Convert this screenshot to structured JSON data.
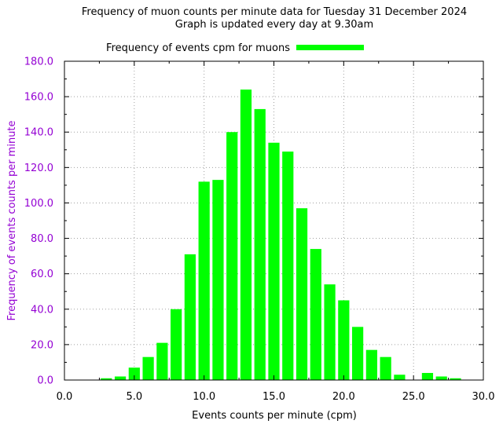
{
  "chart_data": {
    "type": "bar",
    "title": "Frequency of muon counts per minute data for Tuesday 31 December 2024",
    "subtitle": "Graph is updated every day at 9.30am",
    "xlabel": "Events counts per minute (cpm)",
    "ylabel": "Frequency of events counts per minute",
    "xlim": [
      0,
      30
    ],
    "ylim": [
      0,
      180
    ],
    "x_ticks": [
      "0.0",
      "5.0",
      "10.0",
      "15.0",
      "20.0",
      "25.0",
      "30.0"
    ],
    "y_ticks": [
      "0.0",
      "20.0",
      "40.0",
      "60.0",
      "80.0",
      "100.0",
      "120.0",
      "140.0",
      "160.0",
      "180.0"
    ],
    "grid": true,
    "legend_position": "top",
    "series": [
      {
        "name": "Frequency of events cpm for muons",
        "color": "#00ff00",
        "x": [
          3,
          4,
          5,
          6,
          7,
          8,
          9,
          10,
          11,
          12,
          13,
          14,
          15,
          16,
          17,
          18,
          19,
          20,
          21,
          22,
          23,
          24,
          26,
          27,
          28
        ],
        "values": [
          1,
          2,
          7,
          13,
          21,
          40,
          71,
          112,
          113,
          140,
          164,
          153,
          134,
          129,
          97,
          74,
          54,
          45,
          30,
          17,
          13,
          3,
          4,
          2,
          1
        ]
      }
    ],
    "colors": {
      "bars": "#00ff00",
      "ylabel": "#9400d3",
      "yticks": "#9400d3",
      "axes": "#000000",
      "grid": "#a0a0a0"
    }
  }
}
